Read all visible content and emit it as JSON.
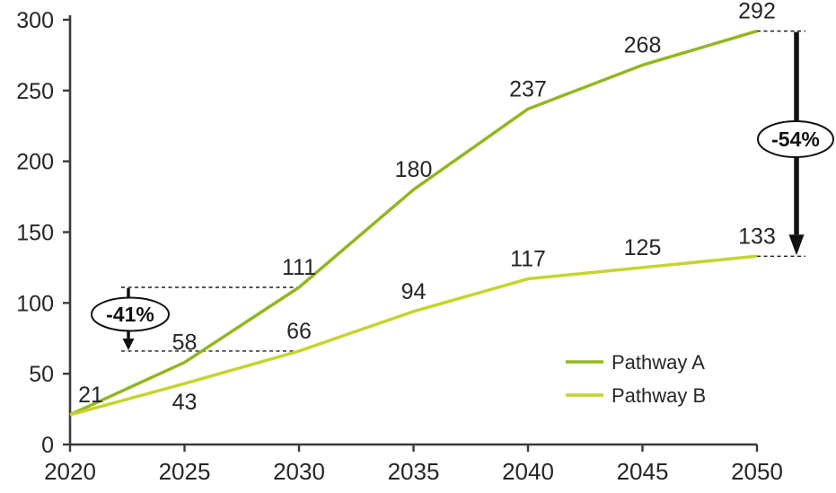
{
  "chart_data": {
    "type": "line",
    "x": [
      2020,
      2025,
      2030,
      2035,
      2040,
      2045,
      2050
    ],
    "series": [
      {
        "name": "Pathway A",
        "color": "#92b71e",
        "values": [
          21,
          58,
          111,
          180,
          237,
          268,
          292
        ]
      },
      {
        "name": "Pathway B",
        "color": "#c6d42e",
        "values": [
          21,
          43,
          66,
          94,
          117,
          125,
          133
        ]
      }
    ],
    "title": "",
    "xlabel": "",
    "ylabel": "",
    "ylim": [
      0,
      300
    ],
    "y_ticks": [
      0,
      50,
      100,
      150,
      200,
      250,
      300
    ],
    "x_ticks": [
      2020,
      2025,
      2030,
      2035,
      2040,
      2045,
      2050
    ],
    "grid": false,
    "legend_position": "inside-lower-right",
    "annotations": [
      {
        "label": "-41%",
        "year": 2030,
        "from_value": 111,
        "to_value": 66,
        "side": "left"
      },
      {
        "label": "-54%",
        "year": 2050,
        "from_value": 292,
        "to_value": 133,
        "side": "right"
      }
    ],
    "colors": {
      "text": "#262626",
      "axis": "#3a3a3a",
      "annotation": "#111111",
      "ellipse_fill": "#ffffff"
    }
  },
  "legend": {
    "items": [
      {
        "label": "Pathway A"
      },
      {
        "label": "Pathway B"
      }
    ]
  }
}
